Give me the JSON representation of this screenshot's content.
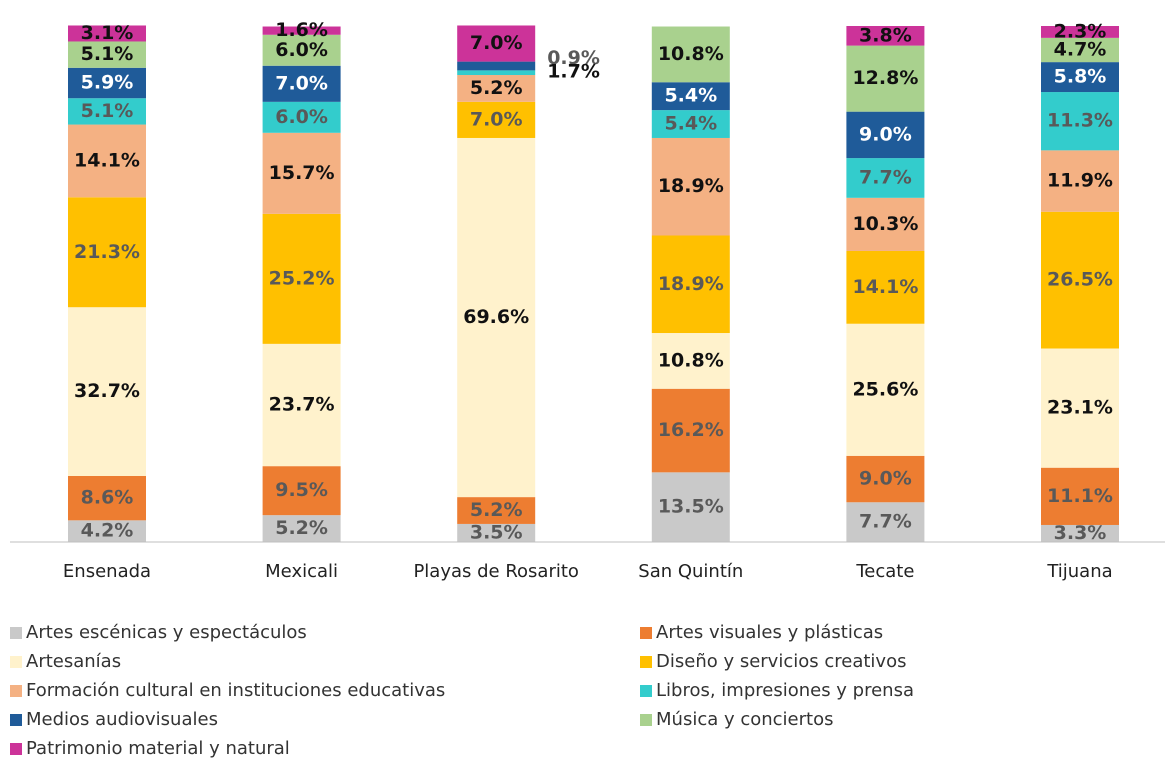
{
  "chart_data": {
    "type": "stacked_bar",
    "categories": [
      "Ensenada",
      "Mexicali",
      "Playas de Rosarito",
      "San Quintín",
      "Tecate",
      "Tijuana"
    ],
    "ylim": [
      0,
      100
    ],
    "series": [
      {
        "name": "Artes escénicas y espectáculos",
        "color": "#c9c9c9",
        "label_color": "#595959",
        "values": [
          4.2,
          5.2,
          3.5,
          13.5,
          7.7,
          3.3
        ],
        "value_labels": [
          "4.2%",
          "5.2%",
          "3.5%",
          "13.5%",
          "7.7%",
          "3.3%"
        ]
      },
      {
        "name": "Artes visuales y plásticas",
        "color": "#ed7d31",
        "label_color": "#595959",
        "values": [
          8.6,
          9.5,
          5.2,
          16.2,
          9.0,
          11.1
        ],
        "value_labels": [
          "8.6%",
          "9.5%",
          "5.2%",
          "16.2%",
          "9.0%",
          "11.1%"
        ]
      },
      {
        "name": "Artesanías",
        "color": "#fff2cc",
        "label_color": "#111111",
        "values": [
          32.7,
          23.7,
          69.6,
          10.8,
          25.6,
          23.1
        ],
        "value_labels": [
          "32.7%",
          "23.7%",
          "69.6%",
          "10.8%",
          "25.6%",
          "23.1%"
        ]
      },
      {
        "name": "Diseño y servicios creativos",
        "color": "#ffc000",
        "label_color": "#595959",
        "values": [
          21.3,
          25.2,
          7.0,
          18.9,
          14.1,
          26.5
        ],
        "value_labels": [
          "21.3%",
          "25.2%",
          "7.0%",
          "18.9%",
          "14.1%",
          "26.5%"
        ]
      },
      {
        "name": "Formación cultural en instituciones educativas",
        "color": "#f4b183",
        "label_color": "#111111",
        "values": [
          14.1,
          15.7,
          5.2,
          18.9,
          10.3,
          11.9
        ],
        "value_labels": [
          "14.1%",
          "15.7%",
          "5.2%",
          "18.9%",
          "10.3%",
          "11.9%"
        ]
      },
      {
        "name": "Libros, impresiones y prensa",
        "color": "#33cccc",
        "label_color": "#595959",
        "values": [
          5.1,
          6.0,
          0.9,
          5.4,
          7.7,
          11.3
        ],
        "value_labels": [
          "5.1%",
          "6.0%",
          "0.9%",
          "5.4%",
          "7.7%",
          "11.3%"
        ]
      },
      {
        "name": "Medios audiovisuales",
        "color": "#1f5b99",
        "label_color": "#ffffff",
        "values": [
          5.9,
          7.0,
          1.7,
          5.4,
          9.0,
          5.8
        ],
        "value_labels": [
          "5.9%",
          "7.0%",
          "1.7%",
          "5.4%",
          "9.0%",
          "5.8%"
        ]
      },
      {
        "name": "Música y conciertos",
        "color": "#a9d18e",
        "label_color": "#111111",
        "values": [
          5.1,
          6.0,
          null,
          10.8,
          12.8,
          4.7
        ],
        "value_labels": [
          "5.1%",
          "6.0%",
          null,
          "10.8%",
          "12.8%",
          "4.7%"
        ]
      },
      {
        "name": "Patrimonio material y natural",
        "color": "#cc3399",
        "label_color": "#111111",
        "values": [
          3.1,
          1.6,
          7.0,
          null,
          3.8,
          2.3
        ],
        "value_labels": [
          "3.1%",
          "1.6%",
          "7.0%",
          null,
          "3.8%",
          "2.3%"
        ]
      }
    ]
  }
}
